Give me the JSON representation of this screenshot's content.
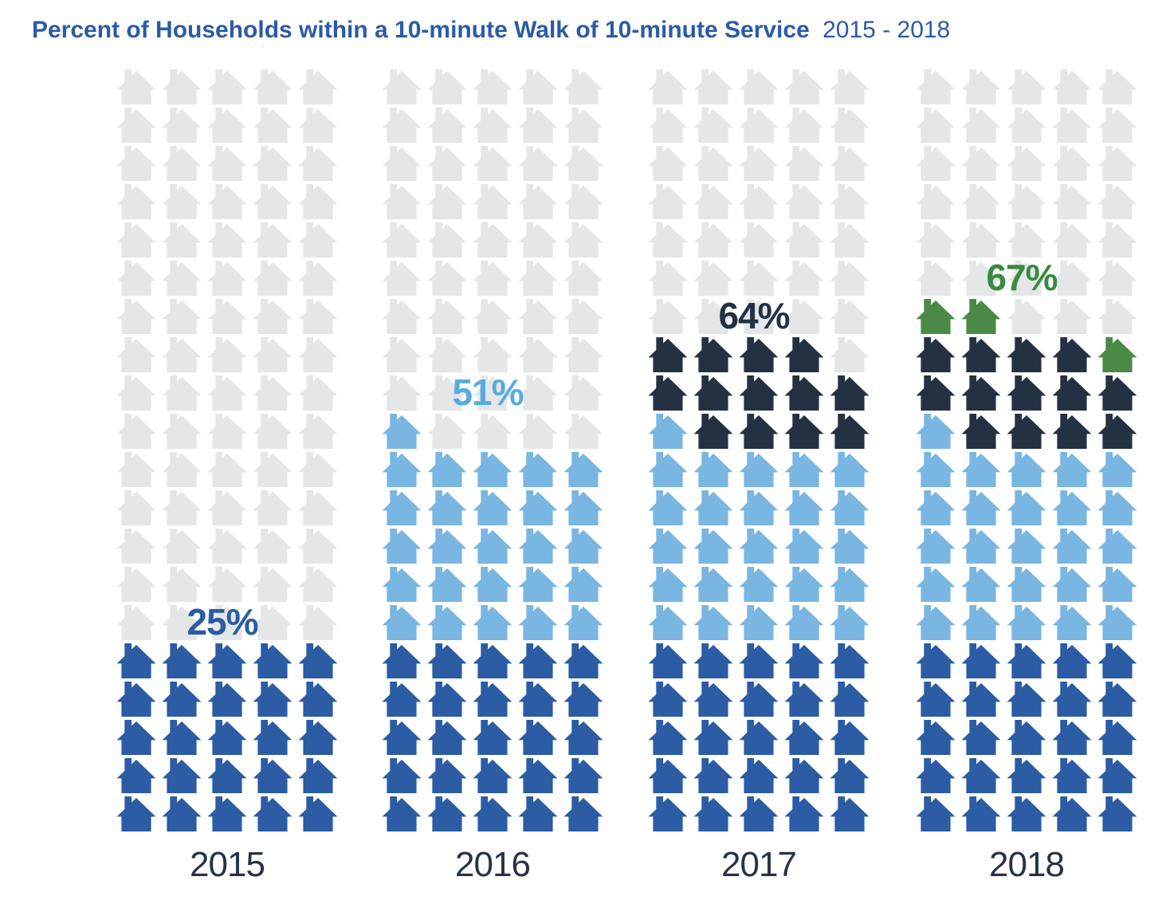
{
  "title": {
    "main": "Percent of Households within a 10-minute Walk of 10-minute Service",
    "range": "2015 - 2018"
  },
  "colors": {
    "title": "#2b5ba6",
    "grey_house": "#e4e6e8",
    "year_label": "#263246",
    "blue_2015": "#2b5ca4",
    "light_blue_2016": "#79b6e2",
    "navy_2017": "#243142",
    "green_2018": "#4a8a46"
  },
  "chart_data": {
    "type": "pictogram-waffle",
    "title": "Percent of Households within a 10-minute Walk of 10-minute Service 2015 - 2018",
    "icon": "house",
    "grid": {
      "rows": 20,
      "cols": 5,
      "total_icons_per_year": 100,
      "fill_order": "bottom-up, left-to-right"
    },
    "legend_position": "none",
    "years": [
      {
        "label": "2015",
        "value": 25,
        "percent_label": "25%",
        "label_color": "#2b5ca4",
        "segments": [
          {
            "series": "2015",
            "count": 25,
            "color": "#2b5ca4"
          }
        ]
      },
      {
        "label": "2016",
        "value": 51,
        "percent_label": "51%",
        "label_color": "#58acde",
        "segments": [
          {
            "series": "2015",
            "count": 25,
            "color": "#2b5ca4"
          },
          {
            "series": "2016",
            "count": 26,
            "color": "#79b6e2"
          }
        ]
      },
      {
        "label": "2017",
        "value": 64,
        "percent_label": "64%",
        "label_color": "#243142",
        "segments": [
          {
            "series": "2015",
            "count": 25,
            "color": "#2b5ca4"
          },
          {
            "series": "2016",
            "count": 26,
            "color": "#79b6e2"
          },
          {
            "series": "2017",
            "count": 13,
            "color": "#243142"
          }
        ]
      },
      {
        "label": "2018",
        "value": 67,
        "percent_label": "67%",
        "label_color": "#3a8a41",
        "segments": [
          {
            "series": "2015",
            "count": 25,
            "color": "#2b5ca4"
          },
          {
            "series": "2016",
            "count": 26,
            "color": "#79b6e2"
          },
          {
            "series": "2017",
            "count": 13,
            "color": "#243142"
          },
          {
            "series": "2018",
            "count": 3,
            "color": "#4a8a46"
          }
        ]
      }
    ]
  }
}
